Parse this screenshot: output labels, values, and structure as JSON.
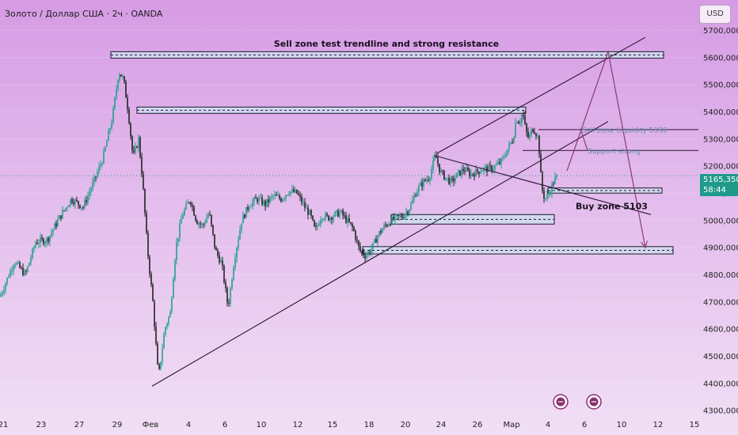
{
  "header": {
    "title": "Золото / Доллар США · 2ч · OANDA",
    "currency_button": "USD"
  },
  "price_tag": {
    "price": "5165,350",
    "countdown": "58:44"
  },
  "colors": {
    "up": "#22a08c",
    "down": "#222222",
    "zone_fill": "#cfdcf0",
    "trendline": "#2a1530",
    "projection": "#8a3b73",
    "price_tag": "#1e9a8a"
  },
  "chart_data": {
    "type": "candlestick",
    "symbol": "Золото / Доллар США · 2ч · OANDA",
    "y_axis": {
      "ylim": [
        4280000,
        5760000
      ],
      "ticks": [
        "5700,000",
        "5600,000",
        "5500,000",
        "5400,000",
        "5300,000",
        "5200,000",
        "5100,000",
        "5000,000",
        "4900,000",
        "4800,000",
        "4700,000",
        "4600,000",
        "4500,000",
        "4400,000",
        "4300,000"
      ],
      "tick_values": [
        5700000,
        5600000,
        5500000,
        5400000,
        5300000,
        5200000,
        5100000,
        5000000,
        4900000,
        4800000,
        4700000,
        4600000,
        4500000,
        4400000,
        4300000
      ]
    },
    "x_axis": {
      "ticks": [
        "21",
        "23",
        "27",
        "29",
        "Фев",
        "4",
        "6",
        "10",
        "12",
        "15",
        "18",
        "20",
        "24",
        "26",
        "Мар",
        "4",
        "6",
        "10",
        "12",
        "15"
      ],
      "tick_bars": [
        4,
        52,
        100,
        148,
        190,
        238,
        284,
        330,
        376,
        420,
        466,
        512,
        557,
        603,
        646,
        692,
        738,
        785,
        831,
        877
      ]
    },
    "current_price": 5165350,
    "price_path": [
      [
        0,
        4720000
      ],
      [
        18,
        4850000
      ],
      [
        32,
        4800000
      ],
      [
        45,
        4920000
      ],
      [
        60,
        4930000
      ],
      [
        75,
        5010000
      ],
      [
        90,
        5080000
      ],
      [
        105,
        5050000
      ],
      [
        118,
        5140000
      ],
      [
        130,
        5230000
      ],
      [
        142,
        5380000
      ],
      [
        150,
        5550000
      ],
      [
        156,
        5520000
      ],
      [
        162,
        5400000
      ],
      [
        168,
        5230000
      ],
      [
        175,
        5300000
      ],
      [
        180,
        5150000
      ],
      [
        186,
        4900000
      ],
      [
        193,
        4700000
      ],
      [
        200,
        4420000
      ],
      [
        208,
        4600000
      ],
      [
        215,
        4660000
      ],
      [
        222,
        4900000
      ],
      [
        230,
        5020000
      ],
      [
        240,
        5080000
      ],
      [
        248,
        5000000
      ],
      [
        256,
        4980000
      ],
      [
        264,
        5030000
      ],
      [
        272,
        4890000
      ],
      [
        280,
        4840000
      ],
      [
        288,
        4680000
      ],
      [
        296,
        4860000
      ],
      [
        305,
        5000000
      ],
      [
        315,
        5060000
      ],
      [
        325,
        5080000
      ],
      [
        335,
        5060000
      ],
      [
        345,
        5090000
      ],
      [
        355,
        5080000
      ],
      [
        365,
        5110000
      ],
      [
        375,
        5100000
      ],
      [
        385,
        5050000
      ],
      [
        392,
        5020000
      ],
      [
        398,
        4960000
      ],
      [
        406,
        5020000
      ],
      [
        414,
        5010000
      ],
      [
        422,
        5020000
      ],
      [
        430,
        5030000
      ],
      [
        438,
        5000000
      ],
      [
        446,
        4970000
      ],
      [
        454,
        4890000
      ],
      [
        462,
        4870000
      ],
      [
        470,
        4900000
      ],
      [
        478,
        4950000
      ],
      [
        486,
        4980000
      ],
      [
        494,
        5000000
      ],
      [
        502,
        5010000
      ],
      [
        510,
        5020000
      ],
      [
        518,
        5050000
      ],
      [
        526,
        5110000
      ],
      [
        534,
        5140000
      ],
      [
        542,
        5160000
      ],
      [
        550,
        5240000
      ],
      [
        556,
        5180000
      ],
      [
        562,
        5160000
      ],
      [
        570,
        5140000
      ],
      [
        578,
        5170000
      ],
      [
        586,
        5190000
      ],
      [
        594,
        5170000
      ],
      [
        602,
        5180000
      ],
      [
        610,
        5190000
      ],
      [
        618,
        5190000
      ],
      [
        626,
        5200000
      ],
      [
        634,
        5220000
      ],
      [
        642,
        5270000
      ],
      [
        648,
        5300000
      ],
      [
        652,
        5380000
      ],
      [
        656,
        5360000
      ],
      [
        660,
        5400000
      ],
      [
        664,
        5330000
      ],
      [
        668,
        5300000
      ],
      [
        672,
        5340000
      ],
      [
        676,
        5330000
      ],
      [
        680,
        5300000
      ],
      [
        684,
        5120000
      ],
      [
        688,
        5080000
      ],
      [
        692,
        5090000
      ],
      [
        696,
        5120000
      ],
      [
        700,
        5150000
      ],
      [
        704,
        5165350
      ]
    ],
    "zones": [
      {
        "name": "top-resistance",
        "x0": 140,
        "x1": 838,
        "y0": 5598000,
        "y1": 5622000
      },
      {
        "name": "upper-resistance",
        "x0": 173,
        "x1": 664,
        "y0": 5395000,
        "y1": 5418000
      },
      {
        "name": "buy-zone-5103",
        "x0": 692,
        "x1": 836,
        "y0": 5101000,
        "y1": 5120000
      },
      {
        "name": "mid-support",
        "x0": 494,
        "x1": 700,
        "y0": 4987000,
        "y1": 5022000
      },
      {
        "name": "low-support",
        "x0": 458,
        "x1": 850,
        "y0": 4877000,
        "y1": 4904000
      }
    ],
    "levels": [
      {
        "name": "sell-zone-liquidity",
        "x0": 680,
        "x1": 882,
        "y": 5335000
      },
      {
        "name": "support-strong",
        "x0": 660,
        "x1": 882,
        "y": 5258000
      }
    ],
    "trendlines": [
      {
        "name": "rising-support",
        "points": [
          [
            192,
            4390000
          ],
          [
            768,
            5365000
          ]
        ]
      },
      {
        "name": "channel-upper",
        "points": [
          [
            552,
            5248000
          ],
          [
            815,
            5675000
          ]
        ]
      },
      {
        "name": "descending-line",
        "points": [
          [
            548,
            5240000
          ],
          [
            822,
            5022000
          ]
        ]
      }
    ],
    "projection": [
      [
        716,
        5183000
      ],
      [
        768,
        5622000
      ],
      [
        815,
        4900000
      ]
    ],
    "projection_branch": [
      [
        733,
        5338000
      ],
      [
        742,
        5258000
      ]
    ],
    "annotations": [
      {
        "text": "Sell zone test trendline and strong resistance",
        "x": 488,
        "y": 5640000,
        "anchor": "middle",
        "color": "#1a1020",
        "size": 11,
        "weight": "600"
      },
      {
        "text": "Sell zone Liquidity 5336",
        "x": 735,
        "y": 5325000,
        "anchor": "start",
        "color": "#5f8fb4",
        "size": 9,
        "weight": "400"
      },
      {
        "text": "Support strong",
        "x": 742,
        "y": 5247000,
        "anchor": "start",
        "color": "#5f8fb4",
        "size": 9,
        "weight": "400"
      },
      {
        "text": "Buy zone 5103",
        "x": 727,
        "y": 5042000,
        "anchor": "start",
        "color": "#1a1020",
        "size": 11,
        "weight": "600"
      }
    ],
    "event_icons": [
      708,
      750
    ]
  }
}
